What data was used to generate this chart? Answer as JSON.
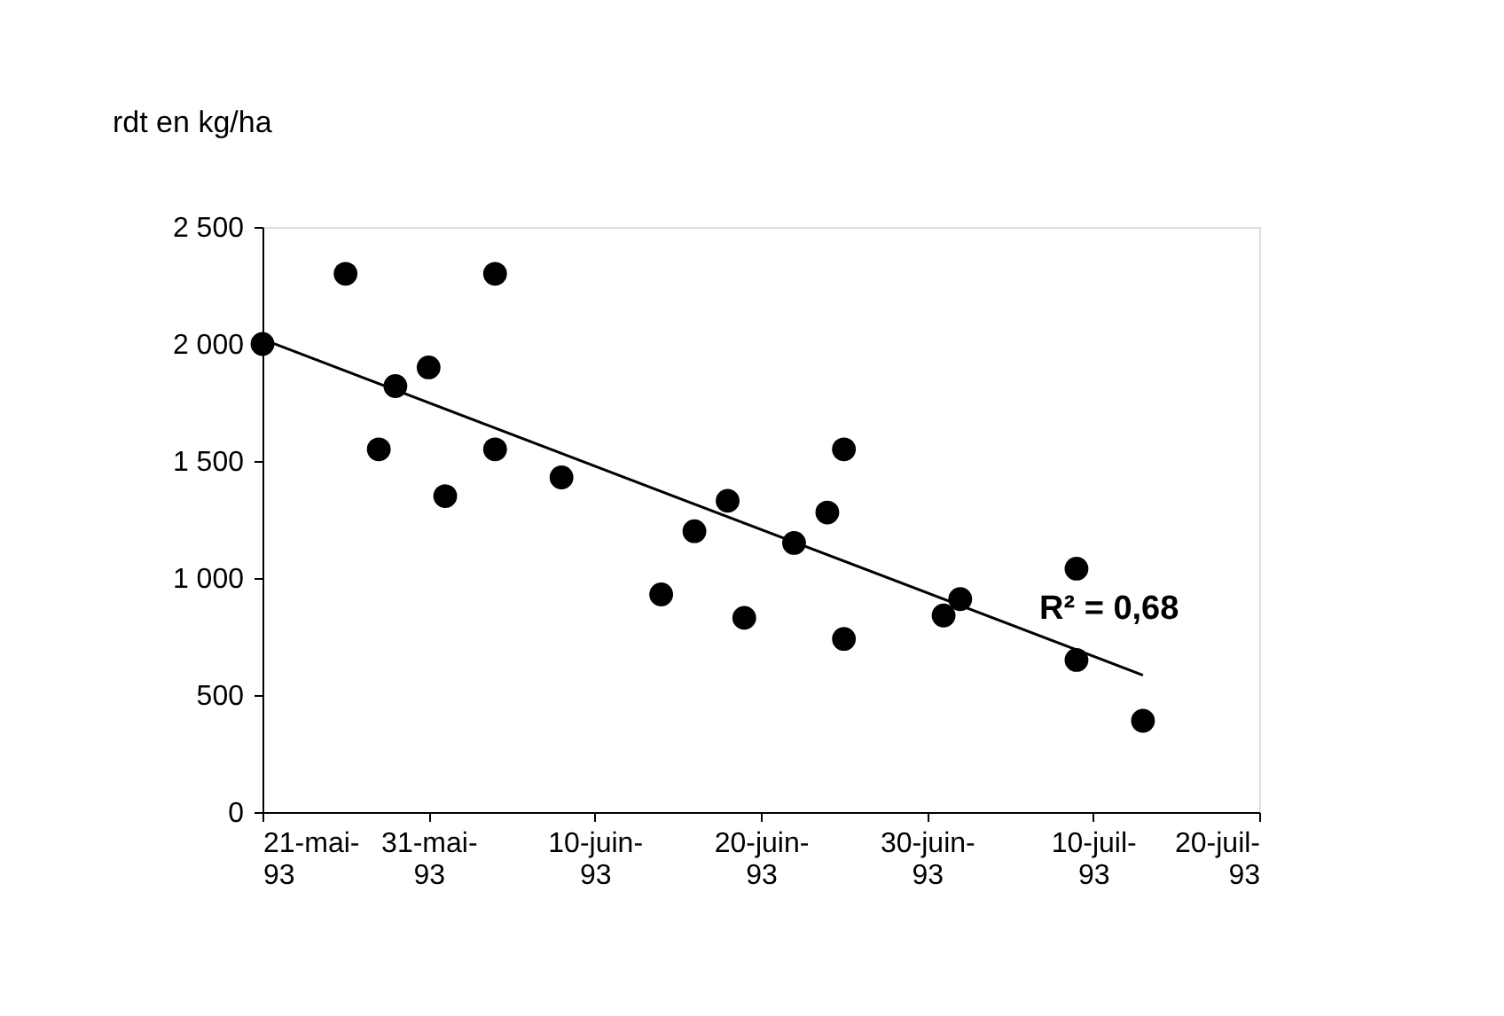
{
  "chart_data": {
    "type": "scatter",
    "ylabel": "rdt en kg/ha",
    "annotations": [
      "R² = 0,68"
    ],
    "xlim": [
      "1993-05-21",
      "1993-07-20"
    ],
    "xticks": [
      {
        "value": "1993-05-21",
        "label": "21-mai-93"
      },
      {
        "value": "1993-05-31",
        "label": "31-mai-93"
      },
      {
        "value": "1993-06-10",
        "label": "10-juin-93"
      },
      {
        "value": "1993-06-20",
        "label": "20-juin-93"
      },
      {
        "value": "1993-06-30",
        "label": "30-juin-93"
      },
      {
        "value": "1993-07-10",
        "label": "10-juil-93"
      },
      {
        "value": "1993-07-20",
        "label": "20-juil-93"
      }
    ],
    "ylim": [
      0,
      2500
    ],
    "yticks": [
      0,
      500,
      {
        "value": 1000,
        "label": "1 000"
      },
      {
        "value": 1500,
        "label": "1 500"
      },
      {
        "value": 2000,
        "label": "2 000"
      },
      {
        "value": 2500,
        "label": "2 500"
      }
    ],
    "grid": false,
    "marker": "circle",
    "series": [
      {
        "color": "#000000",
        "x": [
          "1993-05-21",
          "1993-05-26",
          "1993-05-28",
          "1993-05-29",
          "1993-05-31",
          "1993-06-01",
          "1993-06-04",
          "1993-06-04",
          "1993-06-08",
          "1993-06-14",
          "1993-06-16",
          "1993-06-18",
          "1993-06-19",
          "1993-06-22",
          "1993-06-24",
          "1993-06-25",
          "1993-06-25",
          "1993-07-01",
          "1993-07-02",
          "1993-07-09",
          "1993-07-09",
          "1993-07-13"
        ],
        "values": [
          2000,
          2300,
          1550,
          1820,
          1900,
          1350,
          2300,
          1550,
          1430,
          930,
          1200,
          1330,
          830,
          1150,
          1280,
          1550,
          740,
          840,
          910,
          1040,
          650,
          390
        ]
      },
      {
        "type": "line",
        "color": "#000000",
        "x": [
          "1993-05-21",
          "1993-07-13"
        ],
        "values": [
          2020,
          585
        ],
        "line_style": "solid",
        "marker": "none"
      }
    ]
  }
}
